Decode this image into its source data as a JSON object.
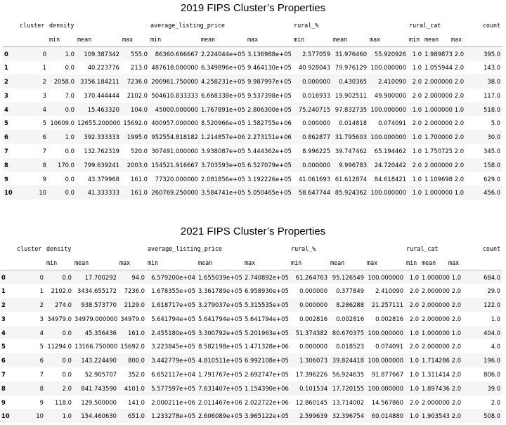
{
  "tables": [
    {
      "title": "2019 FIPS Cluster’s Properties",
      "groups": [
        "cluster",
        "density",
        "average_listing_price",
        "rural_%",
        "rural_cat",
        "count"
      ],
      "subheaders": [
        "min",
        "mean",
        "max",
        "min",
        "mean",
        "max",
        "min",
        "mean",
        "max",
        "min",
        "mean",
        "max"
      ],
      "rows": [
        [
          "0",
          "0",
          "1.0",
          "109.387342",
          "555.0",
          "86360.666667",
          "2.224044e+05",
          "3.136988e+05",
          "2.577059",
          "31.976460",
          "55.920926",
          "1.0",
          "1.989873",
          "2.0",
          "395.0"
        ],
        [
          "1",
          "1",
          "0.0",
          "40.223776",
          "213.0",
          "487618.000000",
          "6.349896e+05",
          "9.464130e+05",
          "40.928043",
          "79.976129",
          "100.000000",
          "1.0",
          "1.055944",
          "2.0",
          "143.0"
        ],
        [
          "2",
          "2",
          "2058.0",
          "3356.184211",
          "7236.0",
          "200961.750000",
          "4.258231e+05",
          "9.987997e+05",
          "0.000000",
          "0.430365",
          "2.410090",
          "2.0",
          "2.000000",
          "2.0",
          "38.0"
        ],
        [
          "3",
          "3",
          "7.0",
          "370.444444",
          "2102.0",
          "504610.833333",
          "6.668338e+05",
          "9.537398e+05",
          "0.016933",
          "19.902511",
          "49.900000",
          "2.0",
          "2.000000",
          "2.0",
          "117.0"
        ],
        [
          "4",
          "4",
          "0.0",
          "15.463320",
          "104.0",
          "45000.000000",
          "1.767891e+05",
          "2.806300e+05",
          "75.240715",
          "97.832735",
          "100.000000",
          "1.0",
          "1.000000",
          "1.0",
          "518.0"
        ],
        [
          "5",
          "5",
          "10609.0",
          "12655.200000",
          "15692.0",
          "400957.000000",
          "8.520966e+05",
          "1.582755e+06",
          "0.000000",
          "0.014818",
          "0.074091",
          "2.0",
          "2.000000",
          "2.0",
          "5.0"
        ],
        [
          "6",
          "6",
          "1.0",
          "392.333333",
          "1995.0",
          "952554.818182",
          "1.214857e+06",
          "2.273151e+06",
          "0.862877",
          "31.795603",
          "100.000000",
          "1.0",
          "1.700000",
          "2.0",
          "30.0"
        ],
        [
          "7",
          "7",
          "0.0",
          "132.762319",
          "520.0",
          "307491.000000",
          "3.938087e+05",
          "5.444362e+05",
          "8.996225",
          "39.747462",
          "65.194462",
          "1.0",
          "1.750725",
          "2.0",
          "345.0"
        ],
        [
          "8",
          "8",
          "170.0",
          "799.639241",
          "2003.0",
          "154521.916667",
          "3.703593e+05",
          "6.527079e+05",
          "0.000000",
          "9.996783",
          "24.720442",
          "2.0",
          "2.000000",
          "2.0",
          "158.0"
        ],
        [
          "9",
          "9",
          "0.0",
          "43.379968",
          "161.0",
          "77320.000000",
          "2.081856e+05",
          "3.192226e+05",
          "41.061693",
          "61.612874",
          "84.618421",
          "1.0",
          "1.109698",
          "2.0",
          "629.0"
        ],
        [
          "10",
          "10",
          "0.0",
          "41.333333",
          "161.0",
          "260769.250000",
          "3.584741e+05",
          "5.050465e+05",
          "58.647744",
          "85.924362",
          "100.000000",
          "1.0",
          "1.000000",
          "1.0",
          "456.0"
        ]
      ]
    },
    {
      "title": "2021 FIPS Cluster’s Properties",
      "groups": [
        "cluster",
        "density",
        "average_listing_price",
        "rural_%",
        "rural_cat",
        "count"
      ],
      "subheaders": [
        "min",
        "mean",
        "max",
        "min",
        "mean",
        "max",
        "min",
        "mean",
        "max",
        "min",
        "mean",
        "max"
      ],
      "rows": [
        [
          "0",
          "0",
          "0.0",
          "17.700292",
          "94.0",
          "6.579200e+04",
          "1.655039e+05",
          "2.740892e+05",
          "61.264763",
          "95.126549",
          "100.000000",
          "1.0",
          "1.000000",
          "1.0",
          "684.0"
        ],
        [
          "1",
          "1",
          "2102.0",
          "3434.655172",
          "7236.0",
          "1.678355e+05",
          "3.361789e+05",
          "6.958930e+05",
          "0.000000",
          "0.377849",
          "2.410090",
          "2.0",
          "2.000000",
          "2.0",
          "29.0"
        ],
        [
          "2",
          "2",
          "274.0",
          "938.573770",
          "2129.0",
          "1.618717e+05",
          "3.279037e+05",
          "5.315535e+05",
          "0.000000",
          "8.286288",
          "21.257111",
          "2.0",
          "2.000000",
          "2.0",
          "122.0"
        ],
        [
          "3",
          "3",
          "34979.0",
          "34979.000000",
          "34979.0",
          "5.641794e+05",
          "5.641794e+05",
          "5.641794e+05",
          "0.002816",
          "0.002816",
          "0.002816",
          "2.0",
          "2.000000",
          "2.0",
          "1.0"
        ],
        [
          "4",
          "4",
          "0.0",
          "45.356436",
          "161.0",
          "2.455180e+05",
          "3.300792e+05",
          "5.201963e+05",
          "51.374382",
          "80.670375",
          "100.000000",
          "1.0",
          "1.000000",
          "1.0",
          "404.0"
        ],
        [
          "5",
          "5",
          "11294.0",
          "13166.750000",
          "15692.0",
          "3.223845e+05",
          "8.582198e+05",
          "1.471328e+06",
          "0.000000",
          "0.018523",
          "0.074091",
          "2.0",
          "2.000000",
          "2.0",
          "4.0"
        ],
        [
          "6",
          "6",
          "0.0",
          "143.224490",
          "800.0",
          "3.442779e+05",
          "4.810511e+05",
          "6.992108e+05",
          "1.306073",
          "39.824418",
          "100.000000",
          "1.0",
          "1.714286",
          "2.0",
          "196.0"
        ],
        [
          "7",
          "7",
          "0.0",
          "52.905707",
          "352.0",
          "6.652117e+04",
          "1.791767e+05",
          "2.692747e+05",
          "17.396226",
          "56.924635",
          "91.877667",
          "1.0",
          "1.311414",
          "2.0",
          "806.0"
        ],
        [
          "8",
          "8",
          "2.0",
          "841.743590",
          "4101.0",
          "5.577597e+05",
          "7.631407e+05",
          "1.154390e+06",
          "0.101534",
          "17.720155",
          "100.000000",
          "1.0",
          "1.897436",
          "2.0",
          "39.0"
        ],
        [
          "9",
          "9",
          "118.0",
          "129.500000",
          "141.0",
          "2.000211e+06",
          "2.011467e+06",
          "2.022722e+06",
          "12.860145",
          "13.714002",
          "14.567860",
          "2.0",
          "2.000000",
          "2.0",
          "2.0"
        ],
        [
          "10",
          "10",
          "1.0",
          "154.460630",
          "651.0",
          "1.233278e+05",
          "2.606089e+05",
          "3.965122e+05",
          "2.599639",
          "32.396754",
          "60.014880",
          "1.0",
          "1.903543",
          "2.0",
          "508.0"
        ]
      ]
    }
  ]
}
